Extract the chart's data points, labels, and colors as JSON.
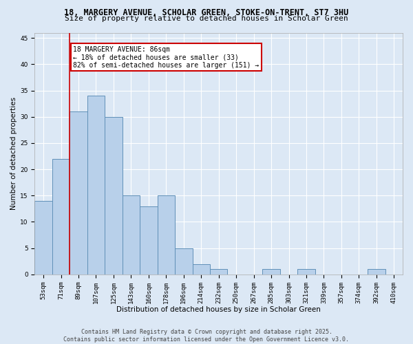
{
  "title_line1": "18, MARGERY AVENUE, SCHOLAR GREEN, STOKE-ON-TRENT, ST7 3HU",
  "title_line2": "Size of property relative to detached houses in Scholar Green",
  "xlabel": "Distribution of detached houses by size in Scholar Green",
  "ylabel": "Number of detached properties",
  "bar_labels": [
    "53sqm",
    "71sqm",
    "89sqm",
    "107sqm",
    "125sqm",
    "143sqm",
    "160sqm",
    "178sqm",
    "196sqm",
    "214sqm",
    "232sqm",
    "250sqm",
    "267sqm",
    "285sqm",
    "303sqm",
    "321sqm",
    "339sqm",
    "357sqm",
    "374sqm",
    "392sqm",
    "410sqm"
  ],
  "bar_values": [
    14,
    22,
    31,
    34,
    30,
    15,
    13,
    15,
    5,
    2,
    1,
    0,
    0,
    1,
    0,
    1,
    0,
    0,
    0,
    1,
    0
  ],
  "bar_color": "#b8d0ea",
  "bar_edge_color": "#6090b8",
  "background_color": "#dce8f5",
  "grid_color": "#ffffff",
  "annotation_text": "18 MARGERY AVENUE: 86sqm\n← 18% of detached houses are smaller (33)\n82% of semi-detached houses are larger (151) →",
  "annotation_box_color": "#ffffff",
  "annotation_box_edge": "#cc0000",
  "vline_color": "#cc0000",
  "vline_x": 1.5,
  "ylim": [
    0,
    46
  ],
  "yticks": [
    0,
    5,
    10,
    15,
    20,
    25,
    30,
    35,
    40,
    45
  ],
  "footer_line1": "Contains HM Land Registry data © Crown copyright and database right 2025.",
  "footer_line2": "Contains public sector information licensed under the Open Government Licence v3.0.",
  "title_fontsize": 8.5,
  "subtitle_fontsize": 8,
  "axis_label_fontsize": 7.5,
  "tick_fontsize": 6.5,
  "annotation_fontsize": 7,
  "footer_fontsize": 6
}
